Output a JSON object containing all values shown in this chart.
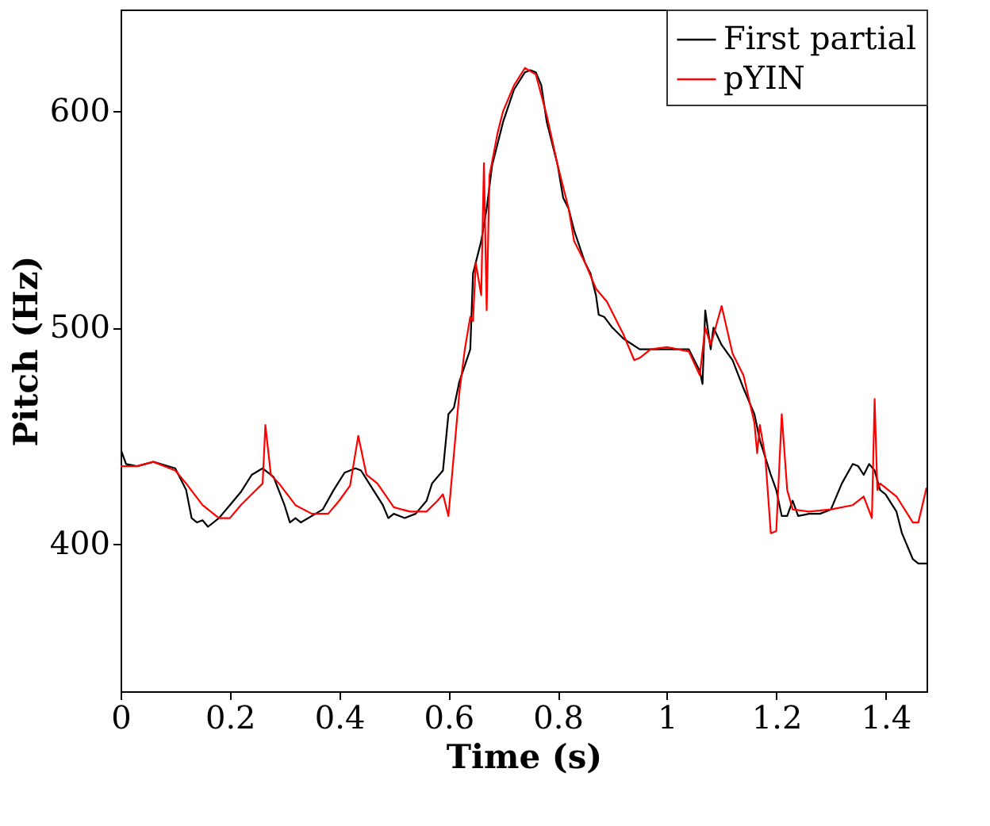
{
  "chart_data": {
    "type": "line",
    "xlabel": "Time (s)",
    "ylabel": "Pitch (Hz)",
    "xlim": [
      0,
      1.475
    ],
    "ylim": [
      332,
      647
    ],
    "xticks": [
      0,
      0.2,
      0.4,
      0.6,
      0.8,
      1,
      1.2,
      1.4
    ],
    "yticks": [
      400,
      500,
      600
    ],
    "legend": "top right",
    "grid": false,
    "marker": "none",
    "line_style": "solid",
    "series": [
      {
        "name": "First partial",
        "color": "#000000",
        "x": [
          0,
          0.01,
          0.03,
          0.06,
          0.1,
          0.12,
          0.13,
          0.14,
          0.15,
          0.16,
          0.18,
          0.2,
          0.22,
          0.24,
          0.26,
          0.28,
          0.3,
          0.31,
          0.32,
          0.33,
          0.35,
          0.37,
          0.39,
          0.41,
          0.43,
          0.44,
          0.46,
          0.48,
          0.49,
          0.5,
          0.52,
          0.54,
          0.56,
          0.57,
          0.59,
          0.6,
          0.61,
          0.62,
          0.64,
          0.645,
          0.66,
          0.67,
          0.68,
          0.7,
          0.72,
          0.74,
          0.75,
          0.76,
          0.77,
          0.78,
          0.8,
          0.81,
          0.82,
          0.83,
          0.85,
          0.86,
          0.87,
          0.875,
          0.885,
          0.9,
          0.92,
          0.95,
          1.0,
          1.04,
          1.06,
          1.065,
          1.07,
          1.08,
          1.085,
          1.1,
          1.12,
          1.14,
          1.16,
          1.17,
          1.18,
          1.19,
          1.2,
          1.21,
          1.22,
          1.23,
          1.24,
          1.26,
          1.28,
          1.3,
          1.32,
          1.34,
          1.35,
          1.36,
          1.37,
          1.38,
          1.39,
          1.4,
          1.42,
          1.43,
          1.45,
          1.46,
          1.475
        ],
        "values": [
          444,
          437,
          436,
          438,
          435,
          425,
          412,
          410,
          411,
          408,
          412,
          418,
          424,
          432,
          435,
          431,
          418,
          410,
          412,
          410,
          413,
          416,
          425,
          433,
          435,
          434,
          426,
          418,
          412,
          414,
          412,
          414,
          420,
          428,
          434,
          460,
          463,
          475,
          490,
          525,
          540,
          555,
          575,
          595,
          610,
          618,
          619,
          618,
          612,
          595,
          575,
          560,
          555,
          545,
          530,
          525,
          515,
          506,
          505,
          500,
          495,
          490,
          490,
          490,
          480,
          474,
          508,
          490,
          500,
          492,
          485,
          472,
          460,
          448,
          440,
          432,
          425,
          413,
          413,
          420,
          413,
          414,
          414,
          416,
          428,
          437,
          436,
          432,
          437,
          434,
          425,
          423,
          415,
          405,
          393,
          391,
          391
        ]
      },
      {
        "name": "pYIN",
        "color": "#ff0000",
        "x": [
          0,
          0.03,
          0.06,
          0.1,
          0.12,
          0.15,
          0.18,
          0.2,
          0.22,
          0.24,
          0.26,
          0.265,
          0.275,
          0.29,
          0.32,
          0.35,
          0.38,
          0.4,
          0.42,
          0.435,
          0.45,
          0.47,
          0.5,
          0.53,
          0.56,
          0.58,
          0.59,
          0.6,
          0.62,
          0.63,
          0.64,
          0.645,
          0.65,
          0.66,
          0.665,
          0.67,
          0.675,
          0.69,
          0.7,
          0.72,
          0.74,
          0.76,
          0.78,
          0.8,
          0.82,
          0.83,
          0.85,
          0.87,
          0.89,
          0.92,
          0.94,
          0.95,
          0.97,
          1.0,
          1.04,
          1.06,
          1.07,
          1.08,
          1.1,
          1.12,
          1.14,
          1.16,
          1.165,
          1.17,
          1.18,
          1.19,
          1.2,
          1.21,
          1.22,
          1.23,
          1.26,
          1.3,
          1.34,
          1.36,
          1.375,
          1.38,
          1.385,
          1.39,
          1.42,
          1.45,
          1.46,
          1.475
        ],
        "values": [
          436,
          436,
          438,
          434,
          428,
          418,
          412,
          412,
          418,
          423,
          428,
          455,
          432,
          428,
          418,
          414,
          414,
          420,
          427,
          450,
          432,
          428,
          417,
          415,
          415,
          420,
          423,
          413,
          470,
          490,
          505,
          503,
          530,
          515,
          576,
          508,
          570,
          590,
          600,
          612,
          620,
          617,
          598,
          575,
          555,
          540,
          530,
          518,
          512,
          497,
          485,
          486,
          490,
          491,
          489,
          478,
          500,
          492,
          510,
          488,
          478,
          456,
          442,
          455,
          440,
          405,
          406,
          460,
          425,
          416,
          415,
          416,
          418,
          422,
          412,
          467,
          425,
          428,
          422,
          410,
          410,
          426
        ]
      }
    ]
  }
}
